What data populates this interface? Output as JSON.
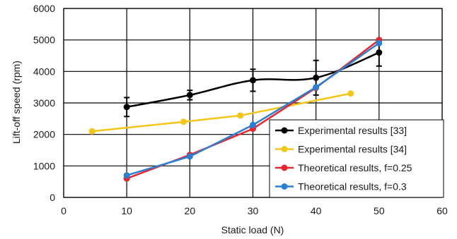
{
  "chart_data": {
    "type": "line",
    "xlabel": "Static load (N)",
    "ylabel": "Lift-off speed (rpm)",
    "xlim": [
      0,
      60
    ],
    "ylim": [
      0,
      6000
    ],
    "x_ticks": [
      0,
      10,
      20,
      30,
      40,
      50,
      60
    ],
    "x_tick_labels": [
      "0",
      "10",
      "20",
      "30",
      "40",
      "50",
      "60"
    ],
    "y_ticks": [
      0,
      1000,
      2000,
      3000,
      4000,
      5000,
      6000
    ],
    "y_tick_labels": [
      "0",
      "1000",
      "2000",
      "3000",
      "4000",
      "5000",
      "6000"
    ],
    "grid": true,
    "legend_position": "bottom-right",
    "series": [
      {
        "name": "Experimental results [33]",
        "color": "#000000",
        "smooth": true,
        "x": [
          10,
          20,
          30,
          40,
          50
        ],
        "y": [
          2870,
          3250,
          3720,
          3800,
          4600
        ],
        "error": [
          300,
          150,
          350,
          550,
          430
        ]
      },
      {
        "name": "Experimental results [34]",
        "color": "#f5c518",
        "smooth": false,
        "x": [
          4.5,
          19,
          28,
          45.5
        ],
        "y": [
          2100,
          2400,
          2600,
          3300
        ]
      },
      {
        "name": "Theoretical results, f=0.25",
        "color": "#e8262b",
        "smooth": false,
        "x": [
          10,
          20,
          30,
          40,
          50
        ],
        "y": [
          600,
          1350,
          2180,
          3480,
          5000
        ]
      },
      {
        "name": "Theoretical results, f=0.3",
        "color": "#2a7fd4",
        "smooth": false,
        "x": [
          10,
          20,
          30,
          40,
          50
        ],
        "y": [
          700,
          1300,
          2300,
          3500,
          4900
        ]
      }
    ]
  }
}
